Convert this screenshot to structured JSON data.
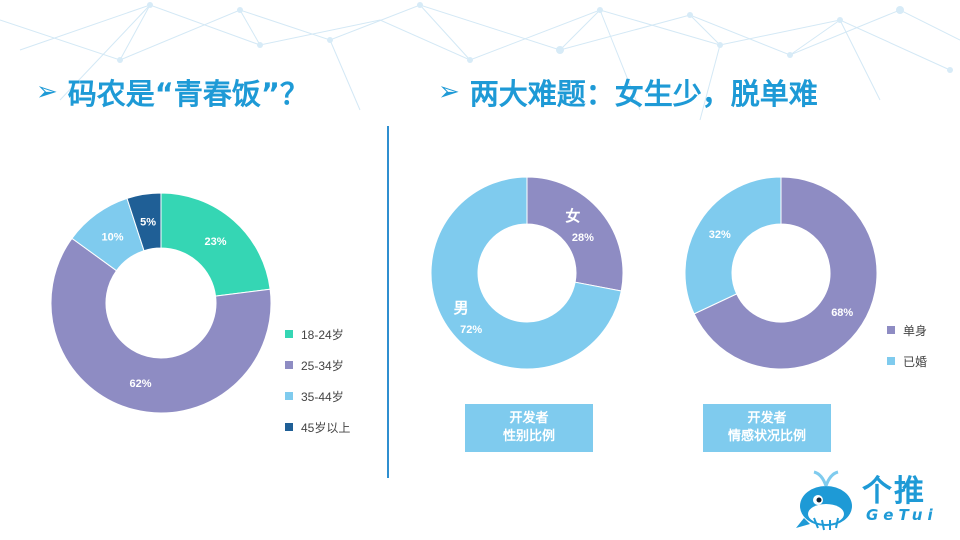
{
  "headings": {
    "left": "码农是“青春饭”？",
    "right": "两大难题：女生少，脱单难"
  },
  "colors": {
    "teal": "#35d6b4",
    "purple": "#8e8cc3",
    "light_blue": "#7fcbee",
    "navy": "#1f5f96",
    "heading": "#1e9ad6"
  },
  "chart_data": [
    {
      "type": "pie",
      "donut": true,
      "categories": [
        "18-24岁",
        "25-34岁",
        "35-44岁",
        "45岁以上"
      ],
      "values": [
        23,
        62,
        10,
        5
      ],
      "data_labels": [
        "23%",
        "62%",
        "10%",
        "5%"
      ],
      "legend_position": "bottom-right"
    },
    {
      "type": "pie",
      "donut": true,
      "categories": [
        "女",
        "男"
      ],
      "values": [
        28,
        72
      ],
      "data_labels": [
        "28%",
        "72%"
      ]
    },
    {
      "type": "pie",
      "donut": true,
      "categories": [
        "单身",
        "已婚"
      ],
      "values": [
        68,
        32
      ],
      "data_labels": [
        "68%",
        "32%"
      ],
      "legend_position": "right"
    }
  ],
  "captions": {
    "gender": {
      "line1": "开发者",
      "line2": "性别比例"
    },
    "marital": {
      "line1": "开发者",
      "line2": "情感状况比例"
    }
  },
  "logo": {
    "cn": "个推",
    "en": "GeTui"
  }
}
